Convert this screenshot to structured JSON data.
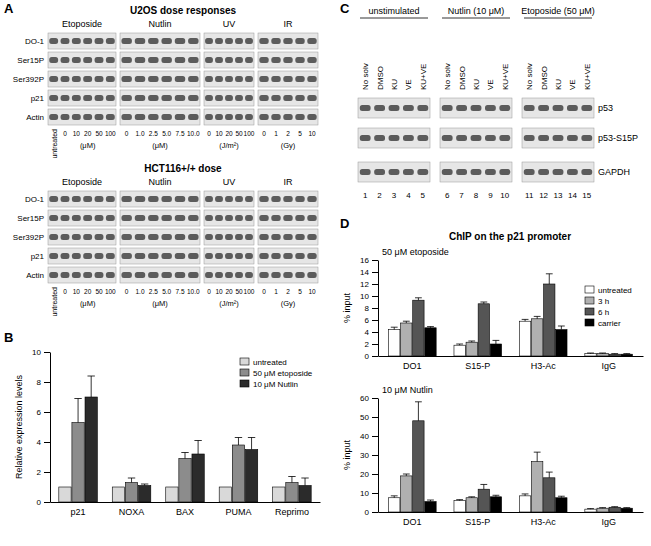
{
  "panel_labels": [
    "A",
    "B",
    "C",
    "D"
  ],
  "blots": {
    "A": [
      {
        "title": "U2OS dose responses",
        "rows": [
          "DO-1",
          "Ser15P",
          "Ser392P",
          "p21",
          "Actin"
        ],
        "untreated": "untreated",
        "treatments": [
          {
            "name": "Etoposide",
            "lanes": [
              "0",
              "10",
              "20",
              "50",
              "100"
            ],
            "unit": "(μM)"
          },
          {
            "name": "Nutlin",
            "lanes": [
              "0",
              "1.0",
              "2.5",
              "5.0",
              "7.5",
              "10.0"
            ],
            "unit": "(μM)"
          },
          {
            "name": "UV",
            "lanes": [
              "0",
              "10",
              "20",
              "50",
              "100"
            ],
            "unit": "(J/m²)"
          },
          {
            "name": "IR",
            "lanes": [
              "0",
              "1",
              "2",
              "5",
              "10"
            ],
            "unit": "(Gy)"
          }
        ]
      },
      {
        "title": "HCT116+/+ dose",
        "rows": [
          "DO-1",
          "Ser15P",
          "Ser392P",
          "p21",
          "Actin"
        ],
        "untreated": "untreated",
        "treatments": [
          {
            "name": "Etoposide",
            "lanes": [
              "0",
              "10",
              "20",
              "50",
              "100"
            ],
            "unit": "(μM)"
          },
          {
            "name": "Nutlin",
            "lanes": [
              "0",
              "1.0",
              "2.5",
              "5.0",
              "7.5",
              "10.0"
            ],
            "unit": "(μM)"
          },
          {
            "name": "UV",
            "lanes": [
              "0",
              "10",
              "20",
              "50",
              "100"
            ],
            "unit": "(J/m²)"
          },
          {
            "name": "IR",
            "lanes": [
              "0",
              "1",
              "2",
              "5",
              "10"
            ],
            "unit": "(Gy)"
          }
        ]
      }
    ],
    "C": {
      "groups": [
        {
          "name": "unstimulated",
          "lanes": [
            "No solv",
            "DMSO",
            "KU",
            "VE",
            "KU+VE"
          ]
        },
        {
          "name": "Nutlin (10 μM)",
          "lanes": [
            "No solv",
            "DMSO",
            "KU",
            "VE",
            "KU+VE"
          ]
        },
        {
          "name": "Etoposide (50 μM)",
          "lanes": [
            "No solv",
            "DMSO",
            "KU",
            "VE",
            "KU+VE"
          ]
        }
      ],
      "rows": [
        "p53",
        "p53-S15P",
        "GAPDH"
      ],
      "lane_numbers": [
        "1",
        "2",
        "3",
        "4",
        "5",
        "6",
        "7",
        "8",
        "9",
        "10",
        "11",
        "12",
        "13",
        "14",
        "15"
      ]
    }
  },
  "chip_title": "ChIP on the p21 promoter",
  "chart_data": [
    {
      "type": "bar",
      "categories": [
        "p21",
        "NOXA",
        "BAX",
        "PUMA",
        "Reprimo"
      ],
      "series": [
        {
          "name": "untreated",
          "color": "#d9d9d9",
          "values": [
            1,
            1,
            1,
            1,
            1
          ]
        },
        {
          "name": "50 μM etoposide",
          "color": "#8c8c8c",
          "values": [
            5.3,
            1.3,
            2.9,
            3.8,
            1.3
          ],
          "errors": [
            1.6,
            0.3,
            0.4,
            0.5,
            0.4
          ]
        },
        {
          "name": "10 μM Nutlin",
          "color": "#2b2b2b",
          "values": [
            7.0,
            1.1,
            3.2,
            3.5,
            1.1
          ],
          "errors": [
            1.4,
            0.1,
            0.9,
            0.8,
            0.5
          ]
        }
      ],
      "ylim": [
        0,
        10
      ],
      "yticks": [
        0,
        2,
        4,
        6,
        8,
        10
      ],
      "ylabel": "Relative expression levels",
      "legend": "top-right"
    },
    {
      "type": "bar",
      "title": "50 μM etoposide",
      "categories": [
        "DO1",
        "S15-P",
        "H3-Ac",
        "IgG"
      ],
      "series": [
        {
          "name": "untreated",
          "color": "#ffffff",
          "values": [
            4.4,
            1.8,
            5.8,
            0.4
          ],
          "errors": [
            0.4,
            0.2,
            0.3,
            0.1
          ]
        },
        {
          "name": "3 h",
          "color": "#b0b0b0",
          "values": [
            5.5,
            2.3,
            6.2,
            0.4
          ],
          "errors": [
            0.3,
            0.2,
            0.4,
            0.1
          ]
        },
        {
          "name": "6 h",
          "color": "#555555",
          "values": [
            9.3,
            8.7,
            12.0,
            0.3
          ],
          "errors": [
            0.4,
            0.3,
            1.7,
            0.1
          ]
        },
        {
          "name": "carrier",
          "color": "#000000",
          "values": [
            4.7,
            2.0,
            4.4,
            0.3
          ],
          "errors": [
            0.2,
            0.6,
            0.6,
            0.1
          ]
        }
      ],
      "ylim": [
        0,
        16
      ],
      "yticks": [
        0,
        2,
        4,
        6,
        8,
        10,
        12,
        14,
        16
      ],
      "ylabel": "% input",
      "legend": "right"
    },
    {
      "type": "bar",
      "title": "10 μM Nutlin",
      "categories": [
        "DO1",
        "S15-P",
        "H3-Ac",
        "IgG"
      ],
      "series": [
        {
          "name": "untreated",
          "color": "#ffffff",
          "values": [
            7.5,
            6.0,
            8.5,
            1.5
          ],
          "errors": [
            1.0,
            0.5,
            1.0,
            0.3
          ]
        },
        {
          "name": "3 h",
          "color": "#b0b0b0",
          "values": [
            19.0,
            7.5,
            26.5,
            2.0
          ],
          "errors": [
            1.0,
            0.5,
            5.0,
            0.3
          ]
        },
        {
          "name": "6 h",
          "color": "#555555",
          "values": [
            48.0,
            12.0,
            18.0,
            2.5
          ],
          "errors": [
            10.0,
            2.5,
            3.0,
            0.3
          ]
        },
        {
          "name": "carrier",
          "color": "#000000",
          "values": [
            5.5,
            8.0,
            7.5,
            2.0
          ],
          "errors": [
            0.8,
            0.8,
            0.8,
            0.3
          ]
        }
      ],
      "ylim": [
        0,
        60
      ],
      "yticks": [
        0,
        10,
        20,
        30,
        40,
        50,
        60
      ],
      "ylabel": "% input"
    }
  ]
}
